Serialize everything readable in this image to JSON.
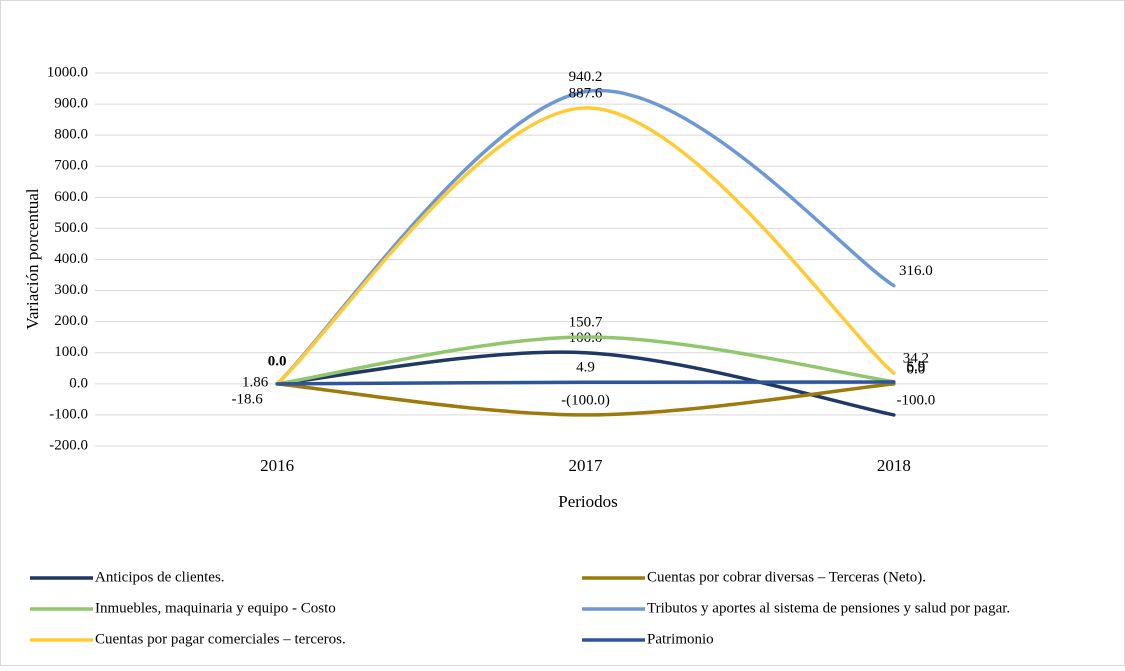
{
  "chart_data": {
    "type": "line",
    "categories": [
      "2016",
      "2017",
      "2018"
    ],
    "series": [
      {
        "name": "Anticipos de clientes.",
        "color": "#203864",
        "values": [
          0,
          100,
          -100
        ],
        "value_labels": [
          null,
          "100.0",
          "-100.0"
        ]
      },
      {
        "name": "Cuentas por cobrar diversas – Terceras (Neto).",
        "color": "#9C7A0B",
        "values": [
          0,
          -100,
          0
        ],
        "value_labels": [
          null,
          "-(100.0)",
          "0.0"
        ]
      },
      {
        "name": "Inmuebles, maquinaria y equipo - Costo",
        "color": "#92C66D",
        "values": [
          0,
          150.7,
          6.9
        ],
        "value_labels": [
          null,
          "150.7",
          "6.9"
        ]
      },
      {
        "name": "Tributos y aportes al sistema de pensiones y salud por pagar.",
        "color": "#6E98D4",
        "values": [
          0,
          940.2,
          316
        ],
        "value_labels": [
          null,
          "940.2",
          "316.0"
        ]
      },
      {
        "name": "Cuentas por pagar comerciales – terceros.",
        "color": "#FFCB35",
        "values": [
          0,
          887.6,
          34.2
        ],
        "value_labels": [
          null,
          "887.6",
          "34.2"
        ]
      },
      {
        "name": "Patrimonio",
        "color": "#2E5597",
        "values": [
          0,
          4.9,
          5.9
        ],
        "value_labels": [
          null,
          "4.9",
          "5.9"
        ]
      }
    ],
    "annotations": [
      "0.0",
      "1.86",
      "-18.6"
    ],
    "xlabel": "Periodos",
    "ylabel": "Variación porcentual",
    "ylim": [
      -200,
      1000
    ],
    "yticks": [
      {
        "value": -200,
        "label": "-200.0"
      },
      {
        "value": -100,
        "label": "-100.0"
      },
      {
        "value": 0,
        "label": "0.0"
      },
      {
        "value": 100,
        "label": "100.0"
      },
      {
        "value": 200,
        "label": "200.0"
      },
      {
        "value": 300,
        "label": "300.0"
      },
      {
        "value": 400,
        "label": "400.0"
      },
      {
        "value": 500,
        "label": "500.0"
      },
      {
        "value": 600,
        "label": "600.0"
      },
      {
        "value": 700,
        "label": "700.0"
      },
      {
        "value": 800,
        "label": "800.0"
      },
      {
        "value": 900,
        "label": "900.0"
      },
      {
        "value": 1000,
        "label": "1000.0"
      }
    ],
    "grid": true,
    "smooth": true,
    "legend": "bottom"
  }
}
